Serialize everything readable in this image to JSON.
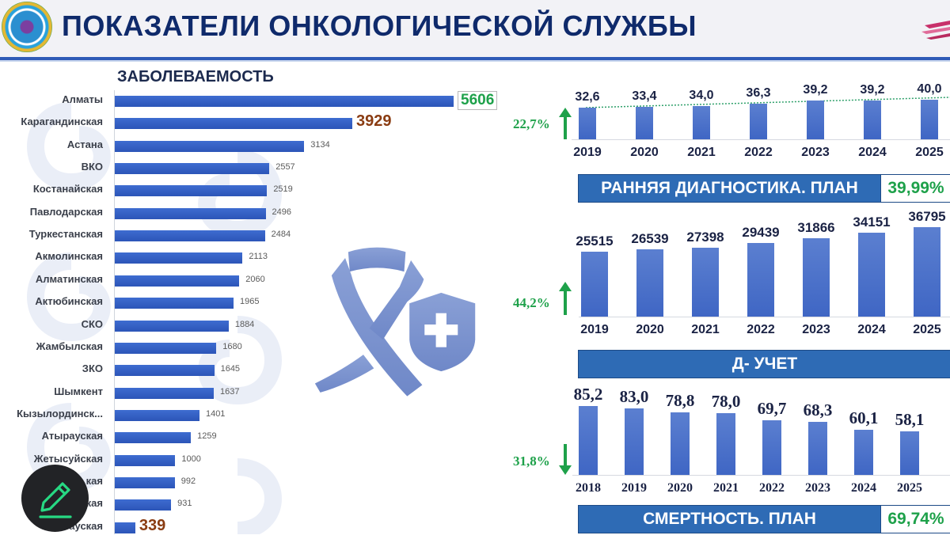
{
  "header": {
    "title": "ПОКАЗАТЕЛИ ОНКОЛОГИЧЕСКОЙ СЛУЖБЫ",
    "emblem_icon": "city-emblem-icon",
    "corner_logo_icon": "brand-logo-icon"
  },
  "incidence": {
    "title": "ЗАБОЛЕВАЕМОСТЬ",
    "rows": [
      {
        "label": "Алматы",
        "value": "5606",
        "style": "green"
      },
      {
        "label": "Карагандинская",
        "value": "3929",
        "style": "brown"
      },
      {
        "label": "Астана",
        "value": "3134",
        "style": "plain"
      },
      {
        "label": "ВКО",
        "value": "2557",
        "style": "plain"
      },
      {
        "label": "Костанайская",
        "value": "2519",
        "style": "plain"
      },
      {
        "label": "Павлодарская",
        "value": "2496",
        "style": "plain"
      },
      {
        "label": "Туркестанская",
        "value": "2484",
        "style": "plain"
      },
      {
        "label": "Акмолинская",
        "value": "2113",
        "style": "plain"
      },
      {
        "label": "Алматинская",
        "value": "2060",
        "style": "plain"
      },
      {
        "label": "Актюбинская",
        "value": "1965",
        "style": "plain"
      },
      {
        "label": "СКО",
        "value": "1884",
        "style": "plain"
      },
      {
        "label": "Жамбылская",
        "value": "1680",
        "style": "plain"
      },
      {
        "label": "ЗКО",
        "value": "1645",
        "style": "plain"
      },
      {
        "label": "Шымкент",
        "value": "1637",
        "style": "plain"
      },
      {
        "label": "Кызылординск...",
        "value": "1401",
        "style": "plain"
      },
      {
        "label": "Атырауская",
        "value": "1259",
        "style": "plain"
      },
      {
        "label": "Жетысуйская",
        "value": "1000",
        "style": "plain"
      },
      {
        "label": "кая",
        "value": "992",
        "style": "plain"
      },
      {
        "label": "кая",
        "value": "931",
        "style": "plain"
      },
      {
        "label": "Улытауская",
        "value": "339",
        "style": "brown"
      }
    ]
  },
  "early_diagnosis": {
    "growth_pct": "22,7%",
    "years": [
      "2019",
      "2020",
      "2021",
      "2022",
      "2023",
      "2024",
      "2025"
    ],
    "values": [
      "32,6",
      "33,4",
      "34,0",
      "36,3",
      "39,2",
      "39,2",
      "40,0"
    ],
    "banner_label": "РАННЯЯ ДИАГНОСТИКА. ПЛАН",
    "banner_value": "39,99%"
  },
  "d_registry": {
    "growth_pct": "44,2%",
    "years": [
      "2019",
      "2020",
      "2021",
      "2022",
      "2023",
      "2024",
      "2025"
    ],
    "values": [
      "25515",
      "26539",
      "27398",
      "29439",
      "31866",
      "34151",
      "36795"
    ],
    "banner_label": "Д- УЧЕТ"
  },
  "mortality": {
    "decline_pct": "31,8%",
    "years": [
      "2018",
      "2019",
      "2020",
      "2021",
      "2022",
      "2023",
      "2024",
      "2025"
    ],
    "values": [
      "85,2",
      "83,0",
      "78,8",
      "78,0",
      "69,7",
      "68,3",
      "60,1",
      "58,1"
    ],
    "banner_label": "СМЕРТНОСТЬ. ПЛАН",
    "banner_value": "69,74%"
  },
  "overlay": {
    "edit_button_icon": "pencil-icon"
  },
  "colors": {
    "bar_blue": "#3e6cd0",
    "title_navy": "#0f2a6b",
    "green": "#1ea14a",
    "brown": "#8a3c12",
    "banner_blue": "#2e6bb5"
  },
  "chart_data": [
    {
      "type": "bar",
      "orientation": "horizontal",
      "title": "ЗАБОЛЕВАЕМОСТЬ",
      "categories": [
        "Алматы",
        "Карагандинская",
        "Астана",
        "ВКО",
        "Костанайская",
        "Павлодарская",
        "Туркестанская",
        "Акмолинская",
        "Алматинская",
        "Актюбинская",
        "СКО",
        "Жамбылская",
        "ЗКО",
        "Шымкент",
        "Кызылординская",
        "Атырауская",
        "Жетысуйская",
        "(скрыто)...кая",
        "(скрыто)...кая",
        "Улытауская"
      ],
      "values": [
        5606,
        3929,
        3134,
        2557,
        2519,
        2496,
        2484,
        2113,
        2060,
        1965,
        1884,
        1680,
        1645,
        1637,
        1401,
        1259,
        1000,
        992,
        931,
        339
      ],
      "xlabel": "",
      "ylabel": "",
      "grid": false
    },
    {
      "type": "bar",
      "title": "РАННЯЯ ДИАГНОСТИКА",
      "categories": [
        "2019",
        "2020",
        "2021",
        "2022",
        "2023",
        "2024",
        "2025"
      ],
      "values": [
        32.6,
        33.4,
        34.0,
        36.3,
        39.2,
        39.2,
        40.0
      ],
      "annotations": [
        "22,7% ↑",
        "План: 39,99%"
      ],
      "trendline": "dotted green"
    },
    {
      "type": "bar",
      "title": "Д- УЧЕТ",
      "categories": [
        "2019",
        "2020",
        "2021",
        "2022",
        "2023",
        "2024",
        "2025"
      ],
      "values": [
        25515,
        26539,
        27398,
        29439,
        31866,
        34151,
        36795
      ],
      "annotations": [
        "44,2% ↑"
      ]
    },
    {
      "type": "bar",
      "title": "СМЕРТНОСТЬ",
      "categories": [
        "2018",
        "2019",
        "2020",
        "2021",
        "2022",
        "2023",
        "2024",
        "2025"
      ],
      "values": [
        85.2,
        83.0,
        78.8,
        78.0,
        69.7,
        68.3,
        60.1,
        58.1
      ],
      "annotations": [
        "31,8% ↓",
        "План: 69,74%"
      ]
    }
  ]
}
